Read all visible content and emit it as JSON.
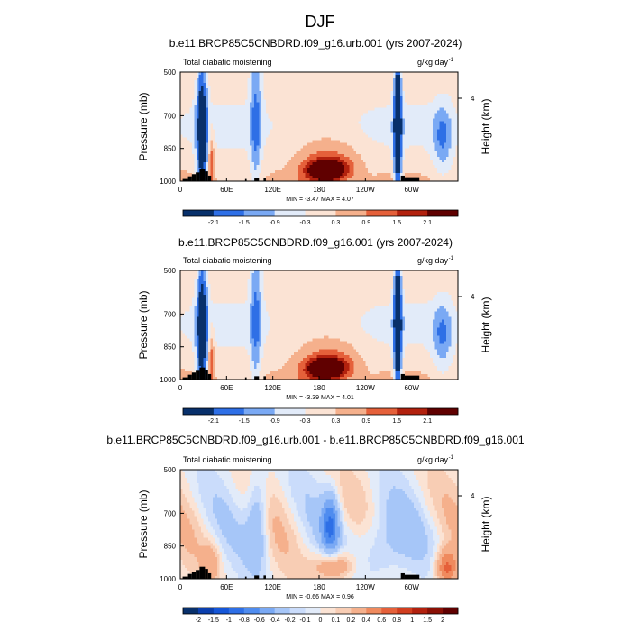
{
  "page_title": "DJF",
  "colors": {
    "blue_scale": [
      "#08306b",
      "#0b3fae",
      "#1556d8",
      "#2e6fe6",
      "#4f8cef",
      "#7aa9f4",
      "#a6c6f8",
      "#cadcfb",
      "#e2ebf9"
    ],
    "red_scale": [
      "#fbe3d4",
      "#f8cdb4",
      "#f5b08c",
      "#ef8a5e",
      "#e5603a",
      "#d13e1f",
      "#b2210e",
      "#8a1005",
      "#600000"
    ],
    "land": "#000000"
  },
  "chart_data": [
    {
      "type": "heatmap",
      "title": "b.e11.BRCP85C5CNBDRD.f09_g16.urb.001 (yrs 2007-2024)",
      "left_label": "Total diabatic moistening",
      "units": "g/kg day",
      "units_exp": "-1",
      "ylabel": "Pressure (mb)",
      "right_label": "Height (km)",
      "right_tick": "4",
      "yticks": [
        "500",
        "700",
        "850",
        "1000"
      ],
      "ytick_values": [
        500,
        700,
        850,
        1000
      ],
      "xticks": [
        "0",
        "60E",
        "120E",
        "180",
        "120W",
        "60W"
      ],
      "xtick_values": [
        0,
        60,
        120,
        180,
        240,
        300
      ],
      "xlim": [
        0,
        360
      ],
      "ylim": [
        1000,
        500
      ],
      "stats": "MIN = -3.47  MAX =  4.07",
      "levels": [
        -2.1,
        -1.5,
        -0.9,
        -0.3,
        0.3,
        0.9,
        1.5,
        2.1
      ],
      "colorbar_labels": [
        "-2.1",
        "-1.5",
        "-0.9",
        "-0.3",
        "0.3",
        "0.9",
        "1.5",
        "2.1"
      ],
      "field_scale": 1.0,
      "min": -3.47,
      "max": 4.07
    },
    {
      "type": "heatmap",
      "title": "b.e11.BRCP85C5CNBDRD.f09_g16.001 (yrs 2007-2024)",
      "left_label": "Total diabatic moistening",
      "units": "g/kg day",
      "units_exp": "-1",
      "ylabel": "Pressure (mb)",
      "right_label": "Height (km)",
      "right_tick": "4",
      "yticks": [
        "500",
        "700",
        "850",
        "1000"
      ],
      "ytick_values": [
        500,
        700,
        850,
        1000
      ],
      "xticks": [
        "0",
        "60E",
        "120E",
        "180",
        "120W",
        "60W"
      ],
      "xtick_values": [
        0,
        60,
        120,
        180,
        240,
        300
      ],
      "xlim": [
        0,
        360
      ],
      "ylim": [
        1000,
        500
      ],
      "stats": "MIN = -3.39  MAX =  4.01",
      "levels": [
        -2.1,
        -1.5,
        -0.9,
        -0.3,
        0.3,
        0.9,
        1.5,
        2.1
      ],
      "colorbar_labels": [
        "-2.1",
        "-1.5",
        "-0.9",
        "-0.3",
        "0.3",
        "0.9",
        "1.5",
        "2.1"
      ],
      "field_scale": 1.0,
      "min": -3.39,
      "max": 4.01
    },
    {
      "type": "heatmap",
      "title": "b.e11.BRCP85C5CNBDRD.f09_g16.urb.001 - b.e11.BRCP85C5CNBDRD.f09_g16.001",
      "left_label": "Total diabatic moistening",
      "units": "g/kg day",
      "units_exp": "-1",
      "ylabel": "Pressure (mb)",
      "right_label": "Height (km)",
      "right_tick": "4",
      "yticks": [
        "500",
        "700",
        "850",
        "1000"
      ],
      "ytick_values": [
        500,
        700,
        850,
        1000
      ],
      "xticks": [
        "0",
        "60E",
        "120E",
        "180",
        "120W",
        "60W"
      ],
      "xtick_values": [
        0,
        60,
        120,
        180,
        240,
        300
      ],
      "xlim": [
        0,
        360
      ],
      "ylim": [
        1000,
        500
      ],
      "stats": "MIN = -0.66  MAX =  0.96",
      "levels": [
        -2,
        -1.5,
        -1,
        -0.8,
        -0.6,
        -0.4,
        -0.2,
        -0.1,
        0,
        0.1,
        0.2,
        0.4,
        0.6,
        0.8,
        1,
        1.5,
        2
      ],
      "colorbar_labels": [
        "-2",
        "-1.5",
        "-1",
        "-0.8",
        "-0.6",
        "-0.4",
        "-0.2",
        "-0.1",
        "0",
        "0.1",
        "0.2",
        "0.4",
        "0.6",
        "0.8",
        "1",
        "1.5",
        "2"
      ],
      "field_scale": 0.25,
      "min": -0.66,
      "max": 0.96
    }
  ]
}
